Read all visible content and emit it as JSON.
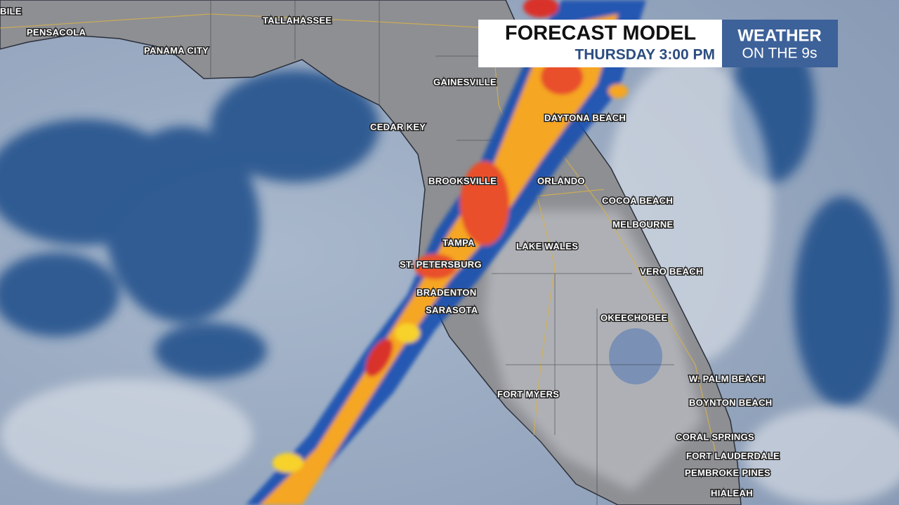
{
  "header": {
    "title": "FORECAST MODEL",
    "subtitle": "THURSDAY 3:00 PM"
  },
  "logo": {
    "line1": "WEATHER",
    "line2": "ON THE 9s"
  },
  "cities": [
    "BILE",
    "PENSACOLA",
    "TALLAHASSEE",
    "PANAMA CITY",
    "GAINESVILLE",
    "CEDAR KEY",
    "DAYTONA BEACH",
    "BROOKSVILLE",
    "ORLANDO",
    "COCOA BEACH",
    "MELBOURNE",
    "TAMPA",
    "LAKE WALES",
    "ST. PETERSBURG",
    "VERO BEACH",
    "BRADENTON",
    "SARASOTA",
    "OKEECHOBEE",
    "W. PALM BEACH",
    "FORT MYERS",
    "BOYNTON BEACH",
    "CORAL SPRINGS",
    "FORT LAUDERDALE",
    "PEMBROKE PINES",
    "HIALEAH"
  ]
}
